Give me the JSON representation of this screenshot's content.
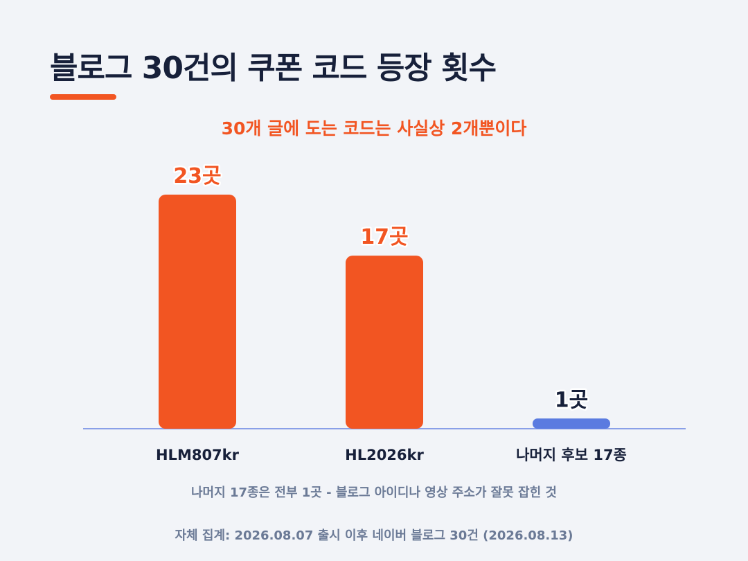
{
  "title": "블로그 30건의 쿠폰 코드 등장 횟수",
  "subtitle": "30개 글에 도는 코드는 사실상 2개뿐이다",
  "note": "나머지 17종은 전부 1곳 - 블로그 아이디나 영상 주소가 잘못 잡힌 것",
  "source": "자체 집계: 2026.08.07 출시 이후 네이버 블로그 30건 (2026.08.13)",
  "colors": {
    "accent": "#f25522",
    "minor": "#5b7be0",
    "axis": "#8aa0e8",
    "title": "#17203a",
    "dark_label": "#17203a",
    "muted": "#6b7a96",
    "background": "#f2f4f8"
  },
  "chart_data": {
    "type": "bar",
    "title": "블로그 30건의 쿠폰 코드 등장 횟수",
    "subtitle": "30개 글에 도는 코드는 사실상 2개뿐이다",
    "categories": [
      "HLM807kr",
      "HL2026kr",
      "나머지 후보 17종"
    ],
    "values": [
      23,
      17,
      1
    ],
    "value_labels": [
      "23곳",
      "17곳",
      "1곳"
    ],
    "unit": "곳",
    "ylim": [
      0,
      23
    ],
    "grid": false,
    "legend": "none",
    "bar_colors": [
      "#f25522",
      "#f25522",
      "#5b7be0"
    ],
    "value_label_colors": [
      "#f25522",
      "#f25522",
      "#17203a"
    ]
  }
}
